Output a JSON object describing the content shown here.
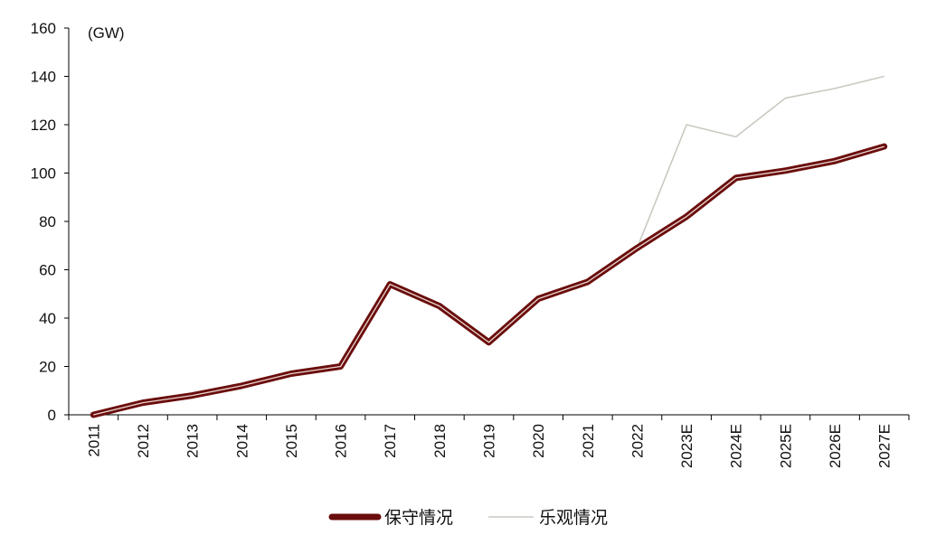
{
  "chart_data": {
    "type": "line",
    "unit_label": "(GW)",
    "categories": [
      "2011",
      "2012",
      "2013",
      "2014",
      "2015",
      "2016",
      "2017",
      "2018",
      "2019",
      "2020",
      "2021",
      "2022",
      "2023E",
      "2024E",
      "2025E",
      "2026E",
      "2027E"
    ],
    "ylim": [
      0,
      160
    ],
    "yticks": [
      0,
      20,
      40,
      60,
      80,
      100,
      120,
      140,
      160
    ],
    "grid": false,
    "legend_position": "bottom-center",
    "series": [
      {
        "name": "保守情况",
        "color": "#6b0d0d",
        "style": "thick-double",
        "values": [
          0,
          5,
          8,
          12,
          17,
          20,
          54,
          45,
          30,
          48,
          55,
          69,
          82,
          98,
          101,
          105,
          111
        ]
      },
      {
        "name": "乐观情况",
        "color": "#c9c9c0",
        "style": "thin",
        "values": [
          0,
          5,
          8,
          12,
          17,
          20,
          54,
          45,
          30,
          48,
          55,
          69,
          120,
          115,
          131,
          135,
          140
        ]
      }
    ]
  }
}
